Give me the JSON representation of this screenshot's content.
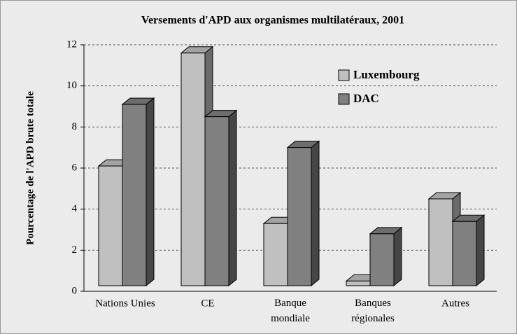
{
  "chart_data": {
    "type": "bar3d",
    "title": "Versements d'APD aux organismes multilatéraux, 2001",
    "y_label": "Pourcentage de l'APD brute totale",
    "categories": [
      "Nations Unies",
      "CE",
      "Banque mondiale",
      "Banques régionales",
      "Autres"
    ],
    "series": [
      {
        "name": "Luxembourg",
        "color": "#c0c0c0",
        "values": [
          6.1,
          11.6,
          3.3,
          0.5,
          4.5
        ]
      },
      {
        "name": "DAC",
        "color": "#808080",
        "values": [
          9.1,
          8.5,
          7.0,
          2.8,
          3.4
        ]
      }
    ],
    "ylim": [
      0,
      12
    ],
    "yticks": [
      0,
      2,
      4,
      6,
      8,
      10,
      12
    ],
    "grid": true,
    "legend": "top-right"
  }
}
